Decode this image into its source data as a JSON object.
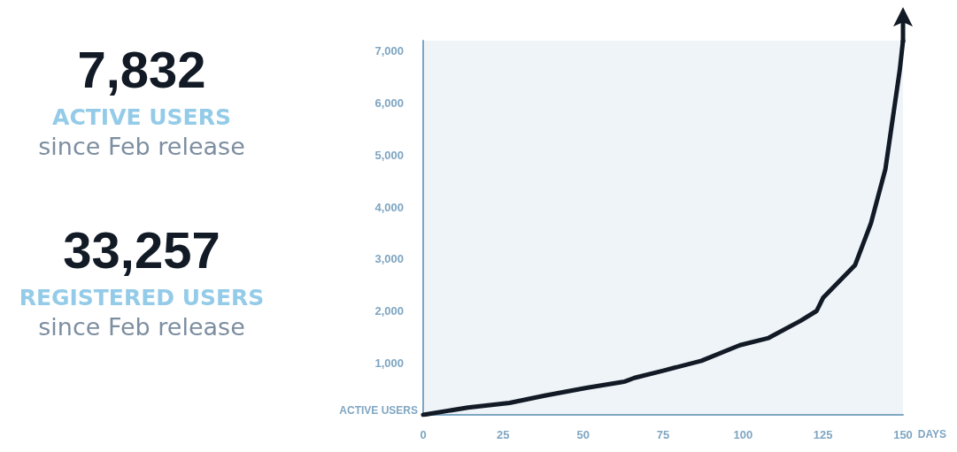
{
  "chart_data": {
    "type": "line",
    "xlabel": "DAYS",
    "ylabel": "ACTIVE USERS",
    "annotations": [
      "7,832",
      "ACTIVE USERS",
      "since Feb release",
      "33,257",
      "REGISTERED USERS",
      "since Feb release"
    ],
    "x": [
      0,
      14,
      27,
      38,
      51,
      62,
      63,
      66,
      75,
      87,
      99,
      108,
      118,
      123,
      125,
      135,
      140,
      144.5,
      149,
      150
    ],
    "series": [
      {
        "color": "#121a26",
        "values": [
          0,
          140,
          230,
          370,
          520,
          630,
          640,
          710,
          850,
          1040,
          1340,
          1480,
          1810,
          2000,
          2250,
          2880,
          3690,
          4730,
          6640,
          7200
        ]
      }
    ],
    "xlim": [
      0,
      150
    ],
    "xticks": [
      0,
      25,
      50,
      75,
      100,
      125,
      150
    ],
    "ylim": [
      0,
      7200
    ],
    "yticks": [
      {
        "value": 1000,
        "label": "1,000"
      },
      {
        "value": 2000,
        "label": "2,000"
      },
      {
        "value": 3000,
        "label": "3,000"
      },
      {
        "value": 4000,
        "label": "4,000"
      },
      {
        "value": 5000,
        "label": "5,000"
      },
      {
        "value": 6000,
        "label": "6,000"
      },
      {
        "value": 7000,
        "label": "7,000"
      }
    ],
    "grid": false,
    "marker": "none",
    "line_style": "solid"
  }
}
